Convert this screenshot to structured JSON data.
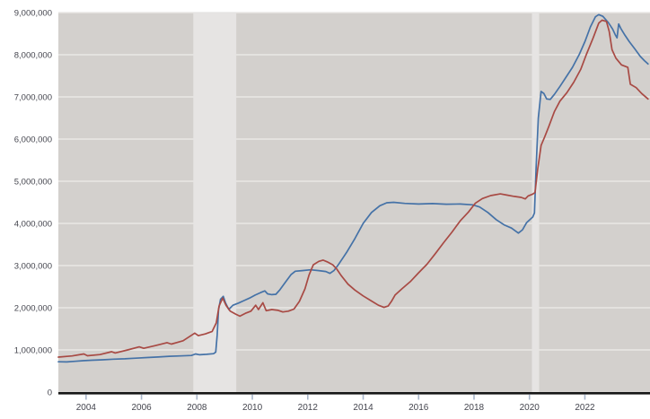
{
  "chart_data": {
    "type": "line",
    "title": "",
    "xlabel": "",
    "ylabel": "",
    "x_range": [
      2003.0,
      2024.35
    ],
    "y_range": [
      0,
      9000000
    ],
    "grid": true,
    "legend": "none",
    "plot_bg_color": "#d3d0cd",
    "recession_band_color": "#e6e4e3",
    "gridline_color": "#e9e7e5",
    "axis_line_color": "#161616",
    "tick_mark_color": "#a9b6ca",
    "label_color": "#44454e",
    "x_ticks": [
      {
        "value": 2004,
        "label": "2004"
      },
      {
        "value": 2006,
        "label": "2006"
      },
      {
        "value": 2008,
        "label": "2008"
      },
      {
        "value": 2010,
        "label": "2010"
      },
      {
        "value": 2012,
        "label": "2012"
      },
      {
        "value": 2014,
        "label": "2014"
      },
      {
        "value": 2016,
        "label": "2016"
      },
      {
        "value": 2018,
        "label": "2018"
      },
      {
        "value": 2020,
        "label": "2020"
      },
      {
        "value": 2022,
        "label": "2022"
      }
    ],
    "y_ticks": [
      {
        "value": 0,
        "label": "0"
      },
      {
        "value": 1000000,
        "label": "1,000,000"
      },
      {
        "value": 2000000,
        "label": "2,000,000"
      },
      {
        "value": 3000000,
        "label": "3,000,000"
      },
      {
        "value": 4000000,
        "label": "4,000,000"
      },
      {
        "value": 5000000,
        "label": "5,000,000"
      },
      {
        "value": 6000000,
        "label": "6,000,000"
      },
      {
        "value": 7000000,
        "label": "7,000,000"
      },
      {
        "value": 8000000,
        "label": "8,000,000"
      },
      {
        "value": 9000000,
        "label": "9,000,000"
      }
    ],
    "recession_bands": [
      {
        "start": 2007.87,
        "end": 2009.42
      },
      {
        "start": 2020.09,
        "end": 2020.35
      }
    ],
    "series": [
      {
        "name": "blue-series",
        "color": "#4572a7",
        "points": [
          [
            2003.0,
            720000
          ],
          [
            2003.3,
            715000
          ],
          [
            2003.6,
            730000
          ],
          [
            2003.9,
            745000
          ],
          [
            2004.2,
            755000
          ],
          [
            2004.6,
            765000
          ],
          [
            2005.0,
            780000
          ],
          [
            2005.4,
            790000
          ],
          [
            2005.8,
            805000
          ],
          [
            2006.2,
            820000
          ],
          [
            2006.6,
            832000
          ],
          [
            2007.0,
            850000
          ],
          [
            2007.4,
            858000
          ],
          [
            2007.8,
            868000
          ],
          [
            2007.95,
            905000
          ],
          [
            2008.1,
            885000
          ],
          [
            2008.35,
            895000
          ],
          [
            2008.6,
            910000
          ],
          [
            2008.68,
            950000
          ],
          [
            2008.73,
            1350000
          ],
          [
            2008.78,
            1950000
          ],
          [
            2008.85,
            2200000
          ],
          [
            2008.95,
            2270000
          ],
          [
            2009.03,
            2120000
          ],
          [
            2009.15,
            1960000
          ],
          [
            2009.3,
            2060000
          ],
          [
            2009.5,
            2110000
          ],
          [
            2009.7,
            2170000
          ],
          [
            2009.9,
            2230000
          ],
          [
            2010.1,
            2300000
          ],
          [
            2010.3,
            2360000
          ],
          [
            2010.45,
            2400000
          ],
          [
            2010.55,
            2330000
          ],
          [
            2010.7,
            2310000
          ],
          [
            2010.85,
            2320000
          ],
          [
            2011.0,
            2430000
          ],
          [
            2011.2,
            2610000
          ],
          [
            2011.4,
            2790000
          ],
          [
            2011.55,
            2865000
          ],
          [
            2011.8,
            2880000
          ],
          [
            2012.1,
            2900000
          ],
          [
            2012.4,
            2880000
          ],
          [
            2012.65,
            2860000
          ],
          [
            2012.8,
            2815000
          ],
          [
            2012.95,
            2885000
          ],
          [
            2013.1,
            3020000
          ],
          [
            2013.4,
            3310000
          ],
          [
            2013.7,
            3640000
          ],
          [
            2014.0,
            4000000
          ],
          [
            2014.3,
            4260000
          ],
          [
            2014.6,
            4420000
          ],
          [
            2014.85,
            4490000
          ],
          [
            2015.1,
            4500000
          ],
          [
            2015.5,
            4475000
          ],
          [
            2016.0,
            4460000
          ],
          [
            2016.5,
            4470000
          ],
          [
            2017.0,
            4455000
          ],
          [
            2017.5,
            4460000
          ],
          [
            2017.95,
            4440000
          ],
          [
            2018.2,
            4390000
          ],
          [
            2018.5,
            4260000
          ],
          [
            2018.8,
            4090000
          ],
          [
            2019.1,
            3960000
          ],
          [
            2019.35,
            3890000
          ],
          [
            2019.6,
            3770000
          ],
          [
            2019.75,
            3850000
          ],
          [
            2019.9,
            4020000
          ],
          [
            2020.0,
            4080000
          ],
          [
            2020.12,
            4150000
          ],
          [
            2020.18,
            4250000
          ],
          [
            2020.24,
            5300000
          ],
          [
            2020.32,
            6500000
          ],
          [
            2020.42,
            7130000
          ],
          [
            2020.52,
            7080000
          ],
          [
            2020.62,
            6950000
          ],
          [
            2020.75,
            6940000
          ],
          [
            2020.9,
            7060000
          ],
          [
            2021.1,
            7250000
          ],
          [
            2021.3,
            7450000
          ],
          [
            2021.55,
            7700000
          ],
          [
            2021.8,
            8010000
          ],
          [
            2022.0,
            8310000
          ],
          [
            2022.2,
            8660000
          ],
          [
            2022.38,
            8900000
          ],
          [
            2022.5,
            8950000
          ],
          [
            2022.65,
            8910000
          ],
          [
            2022.85,
            8760000
          ],
          [
            2023.0,
            8610000
          ],
          [
            2023.1,
            8470000
          ],
          [
            2023.16,
            8400000
          ],
          [
            2023.22,
            8730000
          ],
          [
            2023.3,
            8620000
          ],
          [
            2023.45,
            8460000
          ],
          [
            2023.6,
            8310000
          ],
          [
            2023.8,
            8140000
          ],
          [
            2024.0,
            7960000
          ],
          [
            2024.15,
            7860000
          ],
          [
            2024.28,
            7780000
          ]
        ]
      },
      {
        "name": "red-series",
        "color": "#a84a44",
        "points": [
          [
            2003.0,
            830000
          ],
          [
            2003.5,
            858000
          ],
          [
            2003.92,
            905000
          ],
          [
            2004.05,
            862000
          ],
          [
            2004.5,
            890000
          ],
          [
            2004.92,
            958000
          ],
          [
            2005.05,
            928000
          ],
          [
            2005.5,
            1000000
          ],
          [
            2005.92,
            1072000
          ],
          [
            2006.08,
            1038000
          ],
          [
            2006.5,
            1102000
          ],
          [
            2006.92,
            1172000
          ],
          [
            2007.08,
            1138000
          ],
          [
            2007.5,
            1218000
          ],
          [
            2007.92,
            1398000
          ],
          [
            2008.05,
            1338000
          ],
          [
            2008.3,
            1378000
          ],
          [
            2008.55,
            1438000
          ],
          [
            2008.7,
            1640000
          ],
          [
            2008.8,
            2040000
          ],
          [
            2008.93,
            2230000
          ],
          [
            2009.05,
            2060000
          ],
          [
            2009.2,
            1920000
          ],
          [
            2009.4,
            1850000
          ],
          [
            2009.55,
            1800000
          ],
          [
            2009.75,
            1868000
          ],
          [
            2009.95,
            1920000
          ],
          [
            2010.12,
            2060000
          ],
          [
            2010.22,
            1958000
          ],
          [
            2010.38,
            2120000
          ],
          [
            2010.5,
            1930000
          ],
          [
            2010.7,
            1958000
          ],
          [
            2010.93,
            1938000
          ],
          [
            2011.1,
            1900000
          ],
          [
            2011.3,
            1920000
          ],
          [
            2011.5,
            1968000
          ],
          [
            2011.7,
            2150000
          ],
          [
            2011.9,
            2450000
          ],
          [
            2012.05,
            2780000
          ],
          [
            2012.2,
            3020000
          ],
          [
            2012.4,
            3100000
          ],
          [
            2012.55,
            3130000
          ],
          [
            2012.7,
            3090000
          ],
          [
            2012.9,
            3020000
          ],
          [
            2013.05,
            2915000
          ],
          [
            2013.2,
            2770000
          ],
          [
            2013.45,
            2560000
          ],
          [
            2013.7,
            2420000
          ],
          [
            2014.0,
            2280000
          ],
          [
            2014.3,
            2160000
          ],
          [
            2014.55,
            2060000
          ],
          [
            2014.75,
            2008000
          ],
          [
            2014.9,
            2040000
          ],
          [
            2015.02,
            2150000
          ],
          [
            2015.15,
            2300000
          ],
          [
            2015.4,
            2450000
          ],
          [
            2015.7,
            2620000
          ],
          [
            2016.0,
            2830000
          ],
          [
            2016.3,
            3030000
          ],
          [
            2016.6,
            3280000
          ],
          [
            2016.9,
            3540000
          ],
          [
            2017.2,
            3790000
          ],
          [
            2017.5,
            4060000
          ],
          [
            2017.8,
            4270000
          ],
          [
            2018.05,
            4480000
          ],
          [
            2018.3,
            4590000
          ],
          [
            2018.6,
            4660000
          ],
          [
            2018.95,
            4700000
          ],
          [
            2019.2,
            4670000
          ],
          [
            2019.45,
            4640000
          ],
          [
            2019.7,
            4618000
          ],
          [
            2019.85,
            4580000
          ],
          [
            2019.95,
            4650000
          ],
          [
            2020.1,
            4690000
          ],
          [
            2020.2,
            4730000
          ],
          [
            2020.3,
            5300000
          ],
          [
            2020.42,
            5850000
          ],
          [
            2020.55,
            6050000
          ],
          [
            2020.7,
            6300000
          ],
          [
            2020.9,
            6650000
          ],
          [
            2021.1,
            6900000
          ],
          [
            2021.35,
            7100000
          ],
          [
            2021.6,
            7350000
          ],
          [
            2021.85,
            7650000
          ],
          [
            2022.05,
            8000000
          ],
          [
            2022.3,
            8400000
          ],
          [
            2022.5,
            8750000
          ],
          [
            2022.62,
            8820000
          ],
          [
            2022.78,
            8790000
          ],
          [
            2022.88,
            8550000
          ],
          [
            2022.98,
            8120000
          ],
          [
            2023.12,
            7920000
          ],
          [
            2023.32,
            7760000
          ],
          [
            2023.55,
            7700000
          ],
          [
            2023.64,
            7300000
          ],
          [
            2023.85,
            7220000
          ],
          [
            2024.05,
            7080000
          ],
          [
            2024.28,
            6950000
          ]
        ]
      }
    ]
  }
}
